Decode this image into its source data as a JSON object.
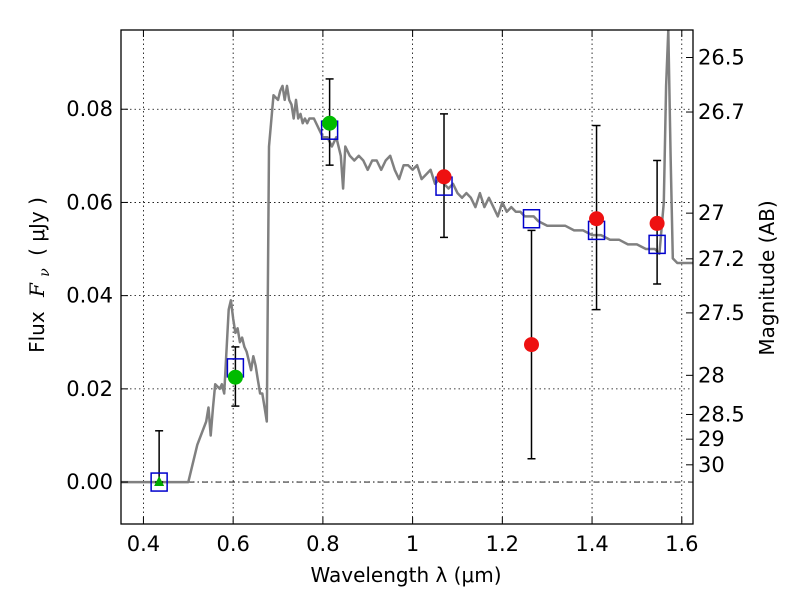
{
  "chart_data": {
    "type": "scatter",
    "xlabel": "Wavelength  λ (μm)",
    "ylabel_left": {
      "prefix": "Flux",
      "symbol": "F",
      "subscript": "ν",
      "unit": "( μJy )"
    },
    "ylabel_right": "Magnitude (AB)",
    "xlim": [
      0.35,
      1.625
    ],
    "ylim": [
      -0.009,
      0.097
    ],
    "x_ticks": [
      {
        "value": 0.4,
        "label": "0.4"
      },
      {
        "value": 0.6,
        "label": "0.6"
      },
      {
        "value": 0.8,
        "label": "0.8"
      },
      {
        "value": 1.0,
        "label": "1"
      },
      {
        "value": 1.2,
        "label": "1.2"
      },
      {
        "value": 1.4,
        "label": "1.4"
      },
      {
        "value": 1.6,
        "label": "1.6"
      }
    ],
    "y_ticks": [
      {
        "value": 0.0,
        "label": "0.00"
      },
      {
        "value": 0.02,
        "label": "0.02"
      },
      {
        "value": 0.04,
        "label": "0.04"
      },
      {
        "value": 0.06,
        "label": "0.06"
      },
      {
        "value": 0.08,
        "label": "0.08"
      }
    ],
    "mag_ticks": [
      {
        "flux": 0.0911,
        "label": "26.5"
      },
      {
        "flux": 0.0794,
        "label": "26.7"
      },
      {
        "flux": 0.0577,
        "label": "27"
      },
      {
        "flux": 0.0479,
        "label": "27.2"
      },
      {
        "flux": 0.0363,
        "label": "27.5"
      },
      {
        "flux": 0.0229,
        "label": "28"
      },
      {
        "flux": 0.0145,
        "label": "28.5"
      },
      {
        "flux": 0.0092,
        "label": "29"
      },
      {
        "flux": 0.0037,
        "label": "30"
      }
    ],
    "grid": true,
    "zero_line": 0.0,
    "model_spectrum": {
      "color": "#808080",
      "x": [
        0.35,
        0.5,
        0.52,
        0.54,
        0.545,
        0.55,
        0.555,
        0.56,
        0.57,
        0.575,
        0.58,
        0.59,
        0.595,
        0.6,
        0.605,
        0.61,
        0.615,
        0.62,
        0.625,
        0.63,
        0.635,
        0.64,
        0.645,
        0.65,
        0.655,
        0.66,
        0.665,
        0.67,
        0.675,
        0.68,
        0.69,
        0.7,
        0.705,
        0.71,
        0.715,
        0.72,
        0.725,
        0.73,
        0.735,
        0.74,
        0.745,
        0.75,
        0.755,
        0.76,
        0.765,
        0.77,
        0.78,
        0.79,
        0.8,
        0.81,
        0.82,
        0.83,
        0.84,
        0.845,
        0.85,
        0.86,
        0.87,
        0.88,
        0.89,
        0.9,
        0.91,
        0.92,
        0.93,
        0.94,
        0.95,
        0.96,
        0.97,
        0.98,
        0.99,
        1.0,
        1.01,
        1.02,
        1.03,
        1.04,
        1.05,
        1.06,
        1.07,
        1.08,
        1.09,
        1.1,
        1.11,
        1.12,
        1.13,
        1.14,
        1.15,
        1.16,
        1.17,
        1.18,
        1.19,
        1.2,
        1.21,
        1.22,
        1.23,
        1.24,
        1.25,
        1.26,
        1.27,
        1.28,
        1.3,
        1.32,
        1.34,
        1.36,
        1.38,
        1.4,
        1.42,
        1.44,
        1.46,
        1.48,
        1.5,
        1.52,
        1.54,
        1.55,
        1.56,
        1.565,
        1.57,
        1.575,
        1.58,
        1.59,
        1.6,
        1.625
      ],
      "y": [
        0.0,
        0.0,
        0.008,
        0.013,
        0.016,
        0.01,
        0.016,
        0.021,
        0.02,
        0.021,
        0.019,
        0.037,
        0.039,
        0.035,
        0.032,
        0.033,
        0.03,
        0.031,
        0.029,
        0.028,
        0.026,
        0.024,
        0.027,
        0.025,
        0.022,
        0.019,
        0.019,
        0.016,
        0.013,
        0.072,
        0.083,
        0.082,
        0.084,
        0.085,
        0.082,
        0.085,
        0.082,
        0.081,
        0.078,
        0.082,
        0.078,
        0.079,
        0.077,
        0.078,
        0.077,
        0.078,
        0.078,
        0.076,
        0.074,
        0.074,
        0.072,
        0.074,
        0.07,
        0.063,
        0.072,
        0.07,
        0.069,
        0.07,
        0.069,
        0.067,
        0.069,
        0.069,
        0.067,
        0.069,
        0.07,
        0.067,
        0.065,
        0.068,
        0.068,
        0.067,
        0.068,
        0.065,
        0.066,
        0.067,
        0.064,
        0.065,
        0.064,
        0.063,
        0.064,
        0.062,
        0.061,
        0.062,
        0.061,
        0.059,
        0.062,
        0.059,
        0.061,
        0.059,
        0.057,
        0.06,
        0.058,
        0.059,
        0.058,
        0.058,
        0.057,
        0.057,
        0.057,
        0.056,
        0.055,
        0.055,
        0.055,
        0.054,
        0.054,
        0.053,
        0.053,
        0.052,
        0.052,
        0.051,
        0.051,
        0.05,
        0.05,
        0.049,
        0.06,
        0.085,
        0.097,
        0.07,
        0.048,
        0.047,
        0.047,
        0.047
      ]
    },
    "series": [
      {
        "name": "model-photometry",
        "marker": "square-open",
        "color": "#0000cc",
        "points": [
          {
            "x": 0.435,
            "y": 0.0
          },
          {
            "x": 0.605,
            "y": 0.0245
          },
          {
            "x": 0.815,
            "y": 0.0755
          },
          {
            "x": 1.07,
            "y": 0.0635
          },
          {
            "x": 1.265,
            "y": 0.0565
          },
          {
            "x": 1.41,
            "y": 0.054
          },
          {
            "x": 1.545,
            "y": 0.051
          }
        ]
      },
      {
        "name": "observed-green",
        "marker": "circle",
        "color": "#00bb00",
        "points": [
          {
            "x": 0.605,
            "y": 0.0225,
            "err_low": 0.0163,
            "err_high": 0.029
          },
          {
            "x": 0.815,
            "y": 0.077,
            "err_low": 0.068,
            "err_high": 0.0865
          }
        ]
      },
      {
        "name": "observed-red",
        "marker": "circle",
        "color": "#ee1111",
        "points": [
          {
            "x": 1.07,
            "y": 0.0655,
            "err_low": 0.0525,
            "err_high": 0.079
          },
          {
            "x": 1.265,
            "y": 0.0295,
            "err_low": 0.005,
            "err_high": 0.054
          },
          {
            "x": 1.41,
            "y": 0.0565,
            "err_low": 0.037,
            "err_high": 0.0765
          },
          {
            "x": 1.545,
            "y": 0.0555,
            "err_low": 0.0425,
            "err_high": 0.069
          }
        ]
      },
      {
        "name": "upper-limit",
        "marker": "triangle",
        "color": "#00aa00",
        "points": [
          {
            "x": 0.435,
            "y": 0.0,
            "err_low": 0.0,
            "err_high": 0.011
          }
        ]
      }
    ]
  }
}
